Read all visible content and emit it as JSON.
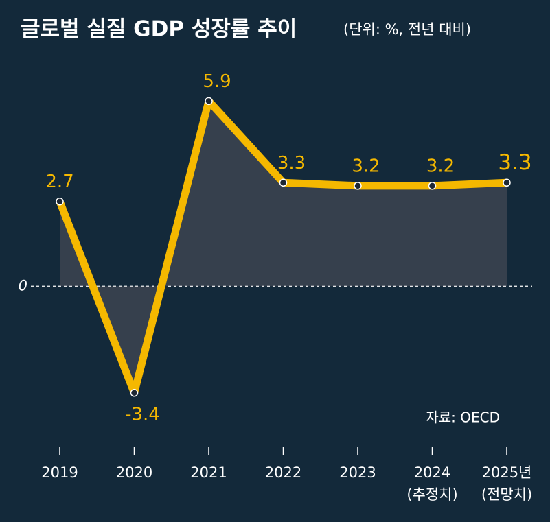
{
  "chart_data": {
    "type": "line",
    "title": "글로벌 실질 GDP 성장률 추이",
    "subtitle": "(단위: %, 전년 대비)",
    "source": "자료: OECD",
    "categories": [
      "2019",
      "2020",
      "2021",
      "2022",
      "2023",
      "2024\n(추정치)",
      "2025년\n(전망치)"
    ],
    "series": [
      {
        "name": "실질 GDP 성장률",
        "color": "#f5b800",
        "values": [
          2.7,
          -3.4,
          5.9,
          3.3,
          3.2,
          3.2,
          3.3
        ]
      }
    ],
    "ylim": [
      -5,
      7
    ],
    "yticks": [
      0
    ]
  }
}
